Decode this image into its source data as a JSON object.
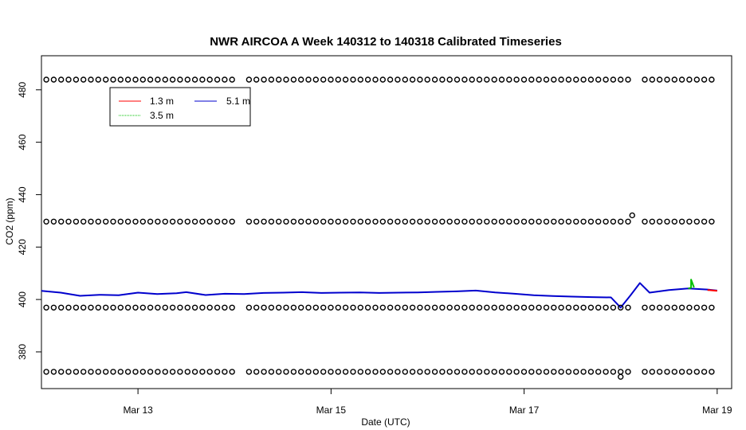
{
  "chart_data": {
    "type": "line",
    "title": "NWR AIRCOA A  Week 140312 to 140318  Calibrated Timeseries",
    "xlabel": "Date (UTC)",
    "ylabel": "CO2 (ppm)",
    "xlim": [
      12.0,
      19.15
    ],
    "ylim": [
      366,
      493
    ],
    "x_ticks": [
      {
        "value": 13,
        "label": "Mar 13"
      },
      {
        "value": 15,
        "label": "Mar 15"
      },
      {
        "value": 17,
        "label": "Mar 17"
      },
      {
        "value": 19,
        "label": "Mar 19"
      }
    ],
    "y_ticks": [
      380,
      400,
      420,
      440,
      460,
      480
    ],
    "grid": false,
    "legend": {
      "position": "top-left",
      "entries": [
        {
          "label": "1.3 m",
          "color": "#ff0000"
        },
        {
          "label": "5.1 m",
          "color": "#0000cd"
        },
        {
          "label": "3.5 m",
          "color": "#00c000"
        }
      ]
    },
    "series": [
      {
        "name": "5.1 m",
        "color": "#0000cd",
        "x": [
          12.0,
          12.2,
          12.4,
          12.6,
          12.8,
          13.0,
          13.2,
          13.4,
          13.5,
          13.7,
          13.9,
          14.1,
          14.3,
          14.5,
          14.7,
          14.9,
          15.1,
          15.3,
          15.5,
          15.7,
          15.9,
          16.1,
          16.3,
          16.5,
          16.7,
          16.9,
          17.1,
          17.3,
          17.5,
          17.7,
          17.9,
          18.0,
          18.1,
          18.2,
          18.3,
          18.5,
          18.7,
          18.9,
          19.0
        ],
        "values": [
          403.3,
          402.6,
          401.4,
          401.8,
          401.6,
          402.6,
          402.1,
          402.4,
          402.8,
          401.7,
          402.2,
          402.1,
          402.5,
          402.6,
          402.8,
          402.5,
          402.6,
          402.7,
          402.5,
          402.6,
          402.7,
          402.9,
          403.1,
          403.4,
          402.7,
          402.2,
          401.6,
          401.3,
          401.1,
          400.9,
          400.8,
          396.9,
          401.5,
          406.3,
          402.6,
          403.6,
          404.2,
          403.8,
          403.4
        ]
      },
      {
        "name": "3.5 m",
        "color": "#00c000",
        "x": [
          18.7,
          18.73,
          18.73,
          18.76
        ],
        "values": [
          404.2,
          404.5,
          407.6,
          404.6
        ]
      },
      {
        "name": "1.3 m",
        "color": "#ff0000",
        "x": [
          18.9,
          19.0
        ],
        "values": [
          403.6,
          403.3
        ]
      }
    ],
    "reference_bands": [
      {
        "name": "cal-high",
        "value": 483.9
      },
      {
        "name": "cal-mid",
        "value": 429.7
      },
      {
        "name": "cal-low",
        "value": 396.9
      },
      {
        "name": "cal-lowest",
        "value": 372.4
      }
    ],
    "reference_x_segments": [
      {
        "from": 12.05,
        "to": 14.05
      },
      {
        "from": 14.15,
        "to": 18.1
      },
      {
        "from": 18.25,
        "to": 19.0
      }
    ],
    "reference_spacing": 0.077,
    "outliers": [
      {
        "x": 18.12,
        "y": 432.1
      },
      {
        "x": 18.0,
        "y": 370.5
      }
    ]
  }
}
